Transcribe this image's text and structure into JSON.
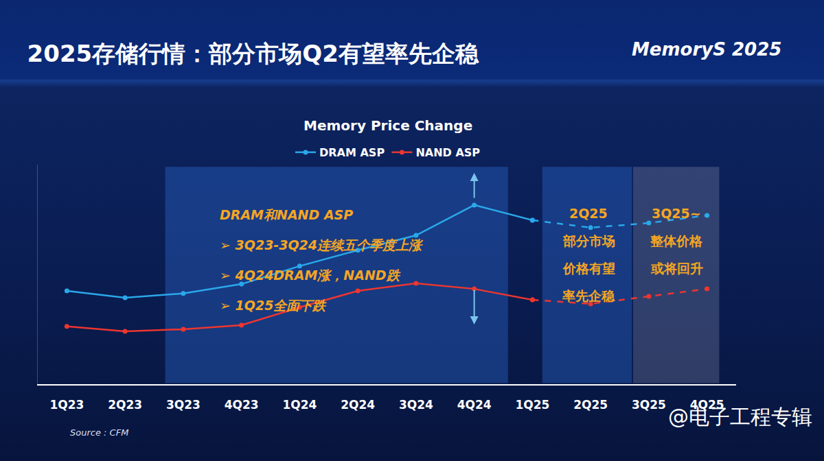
{
  "slide": {
    "title": "2025存储行情：部分市场Q2有望率先企稳",
    "logo": "MemoryS 2025",
    "source": "Source : CFM",
    "watermark": "@电子工程专辑"
  },
  "chart_data": {
    "type": "line",
    "title": "Memory Price Change",
    "categories": [
      "1Q23",
      "2Q23",
      "3Q23",
      "4Q23",
      "1Q24",
      "2Q24",
      "3Q24",
      "4Q24",
      "1Q25",
      "2Q25",
      "3Q25",
      "4Q25"
    ],
    "series": [
      {
        "name": "DRAM ASP",
        "color": "#2aa8ea",
        "marker": "circle",
        "line_style": "solid",
        "values": [
          42.5,
          39.4,
          41.3,
          45.6,
          53.8,
          61.0,
          67.8,
          81.6,
          74.7,
          null,
          null,
          null
        ]
      },
      {
        "name": "NAND ASP",
        "color": "#ec3630",
        "marker": "circle",
        "line_style": "solid",
        "values": [
          26.3,
          24.1,
          25.0,
          26.9,
          35.0,
          42.5,
          45.9,
          43.4,
          38.4,
          null,
          null,
          null
        ]
      },
      {
        "name": "DRAM ASP",
        "color": "#2aa8ea",
        "marker": "circle",
        "line_style": "dashed",
        "values": [
          null,
          null,
          null,
          null,
          null,
          null,
          null,
          null,
          74.7,
          71.3,
          73.4,
          76.9
        ]
      },
      {
        "name": "NAND ASP",
        "color": "#ec3630",
        "marker": "circle",
        "line_style": "dashed",
        "values": [
          null,
          null,
          null,
          null,
          null,
          null,
          null,
          null,
          38.4,
          36.6,
          40.0,
          43.4
        ]
      }
    ],
    "ylim": [
      0,
      100
    ],
    "grid": false,
    "legend": "top",
    "tick_labels": "x",
    "annotations": [
      {
        "text": [
          "DRAM和NAND ASP",
          "➢ 3Q23-3Q24连续五个季度上涨",
          "➢ 4Q24DRAM涨，NAND跌",
          "➢ 1Q25全面下跌"
        ]
      },
      {
        "text": [
          "2Q25",
          "部分市场",
          "价格有望",
          "率先企稳"
        ]
      },
      {
        "text": [
          "3Q25~",
          "整体价格",
          "或将回升"
        ]
      }
    ]
  }
}
